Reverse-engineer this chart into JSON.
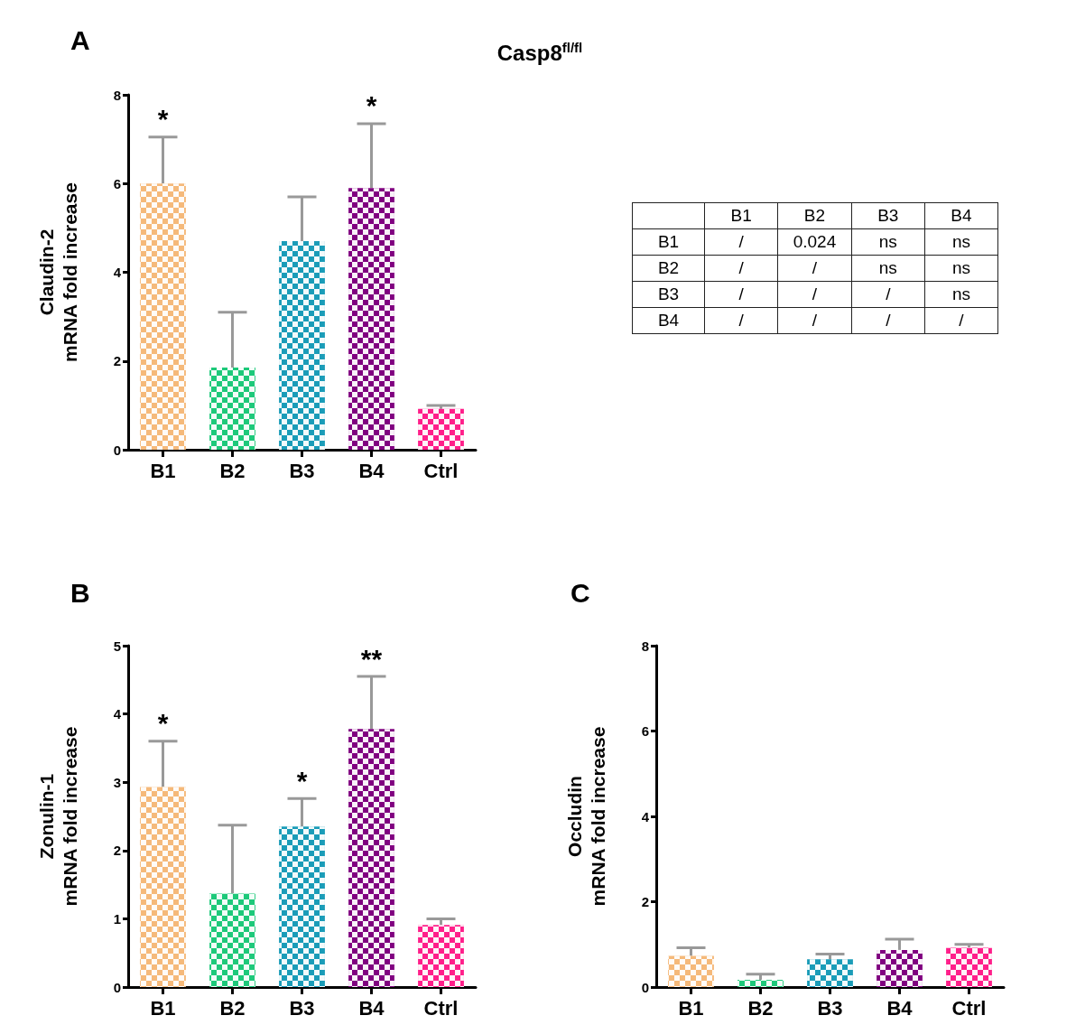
{
  "chart_data": [
    {
      "type": "bar",
      "title": "A",
      "ylabel": "Claudin-2\nmRNA fold increase",
      "categories": [
        "B1",
        "B2",
        "B3",
        "B4",
        "Ctrl"
      ],
      "values": [
        6.0,
        1.85,
        4.7,
        5.9,
        0.92
      ],
      "colors": [
        "#f5b97a",
        "#1dc97a",
        "#1a9cb8",
        "#800080",
        "#ff1f8a"
      ],
      "errors": [
        [
          6.0,
          7.05
        ],
        [
          1.85,
          3.1
        ],
        [
          4.7,
          5.7
        ],
        [
          5.9,
          7.35
        ],
        [
          0.92,
          1.0
        ]
      ],
      "ylim": [
        0,
        8
      ],
      "yticks": [
        0,
        2,
        4,
        6,
        8
      ],
      "grid": false,
      "annotations": [
        {
          "text": "*",
          "x": "B1",
          "y": 7.05
        },
        {
          "text": "*",
          "x": "B4",
          "y": 7.35
        }
      ]
    },
    {
      "type": "other",
      "title": "Casp8$^{fl/fl}$",
      "categories": [
        null,
        "B1",
        "B2",
        "B3",
        "B4"
      ],
      "y_categories": [
        "B1",
        "B2",
        "B3",
        "B4"
      ],
      "cell_labels": [
        [
          "/",
          "0.024",
          "ns",
          "ns"
        ],
        [
          "/",
          "/",
          "ns",
          "ns"
        ],
        [
          "/",
          "/",
          "/",
          "ns"
        ],
        [
          "/",
          "/",
          "/",
          "/"
        ]
      ]
    },
    {
      "type": "bar",
      "title": "B",
      "ylabel": "Zonulin-1\nmRNA fold increase",
      "categories": [
        "B1",
        "B2",
        "B3",
        "B4",
        "Ctrl"
      ],
      "values": [
        2.93,
        1.37,
        2.35,
        3.78,
        0.91
      ],
      "colors": [
        "#f5b97a",
        "#1dc97a",
        "#1a9cb8",
        "#800080",
        "#ff1f8a"
      ],
      "errors": [
        [
          2.93,
          3.6
        ],
        [
          1.37,
          2.37
        ],
        [
          2.35,
          2.76
        ],
        [
          3.78,
          4.55
        ],
        [
          0.91,
          1.0
        ]
      ],
      "ylim": [
        0,
        5
      ],
      "yticks": [
        0,
        1,
        2,
        3,
        4,
        5
      ],
      "grid": false,
      "annotations": [
        {
          "text": "*",
          "x": "B1",
          "y": 3.6
        },
        {
          "text": "*",
          "x": "B3",
          "y": 2.76
        },
        {
          "text": "**",
          "x": "B4",
          "y": 4.55
        }
      ]
    },
    {
      "type": "bar",
      "title": "C",
      "ylabel": "Occludin\nmRNA fold increase",
      "categories": [
        "B1",
        "B2",
        "B3",
        "B4",
        "Ctrl"
      ],
      "values": [
        0.73,
        0.17,
        0.65,
        0.87,
        0.92
      ],
      "colors": [
        "#f5b97a",
        "#1dc97a",
        "#1a9cb8",
        "#800080",
        "#ff1f8a"
      ],
      "errors": [
        [
          0.73,
          0.92
        ],
        [
          0.17,
          0.3
        ],
        [
          0.65,
          0.77
        ],
        [
          0.87,
          1.12
        ],
        [
          0.92,
          1.0
        ]
      ],
      "ylim": [
        0,
        8
      ],
      "yticks": [
        0,
        2,
        4,
        6,
        8
      ],
      "grid": false
    }
  ]
}
